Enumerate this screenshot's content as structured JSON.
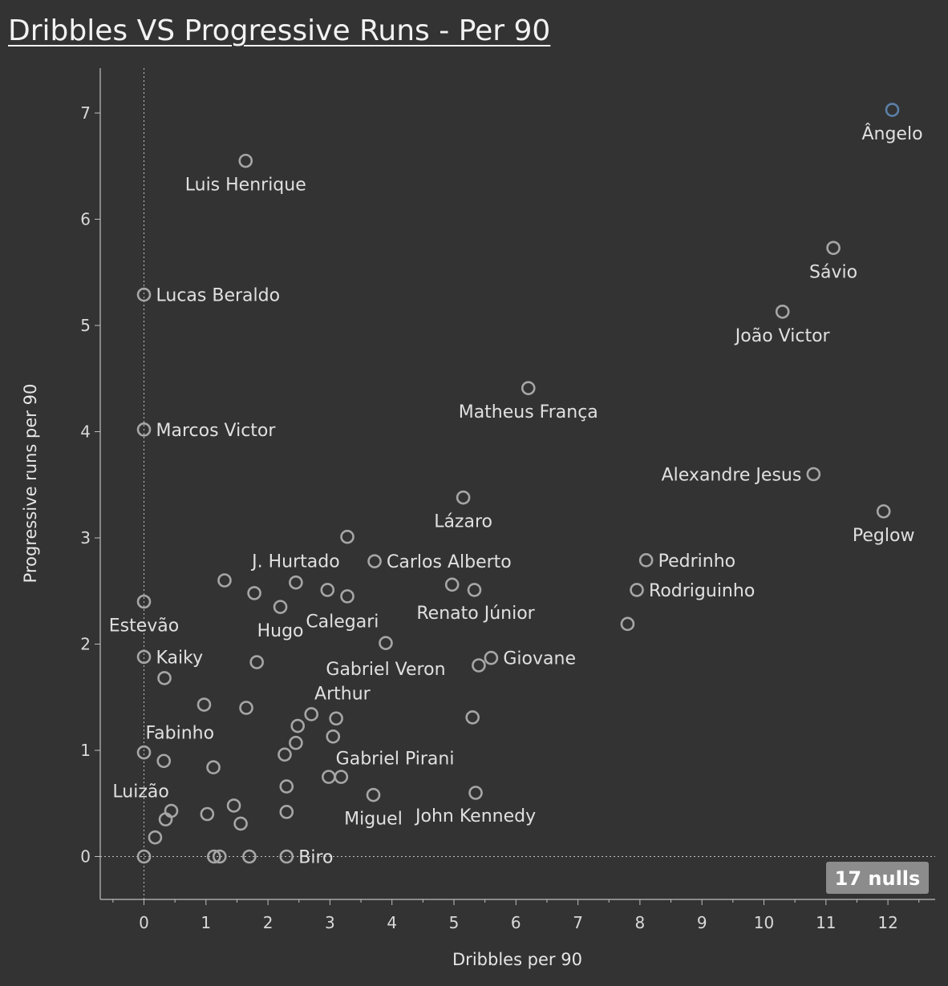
{
  "title": "Dribbles VS Progressive Runs - Per 90",
  "nulls_badge": "17 nulls",
  "colors": {
    "background": "#333333",
    "marker": "#a6a6a6",
    "highlight_marker": "#5b7fa6",
    "axis": "#bfbfbf",
    "reference_line": "#bfbfbf"
  },
  "chart_data": {
    "type": "scatter",
    "title": "Dribbles VS Progressive Runs - Per 90",
    "xlabel": "Dribbles per 90",
    "ylabel": "Progressive runs per 90",
    "xlim": [
      -0.7,
      12.8
    ],
    "ylim": [
      -0.4,
      7.4
    ],
    "x_ticks": [
      0,
      1,
      2,
      3,
      4,
      5,
      6,
      7,
      8,
      9,
      10,
      11,
      12
    ],
    "y_ticks": [
      0,
      1,
      2,
      3,
      4,
      5,
      6,
      7
    ],
    "grid": false,
    "reference_lines": {
      "x": 0,
      "y": 0
    },
    "points": [
      {
        "x": 12.07,
        "y": 7.03,
        "label": "Ângelo",
        "label_pos": "below",
        "highlight": true
      },
      {
        "x": 1.64,
        "y": 6.55,
        "label": "Luis Henrique",
        "label_pos": "below"
      },
      {
        "x": 11.12,
        "y": 5.73,
        "label": "Sávio",
        "label_pos": "below"
      },
      {
        "x": 0.0,
        "y": 5.29,
        "label": "Lucas Beraldo",
        "label_pos": "right"
      },
      {
        "x": 10.3,
        "y": 5.13,
        "label": "João Victor",
        "label_pos": "below"
      },
      {
        "x": 6.2,
        "y": 4.41,
        "label": "Matheus França",
        "label_pos": "below"
      },
      {
        "x": 0.0,
        "y": 4.02,
        "label": "Marcos Victor",
        "label_pos": "right"
      },
      {
        "x": 10.8,
        "y": 3.6,
        "label": "Alexandre Jesus",
        "label_pos": "left"
      },
      {
        "x": 5.15,
        "y": 3.38,
        "label": "Lázaro",
        "label_pos": "below"
      },
      {
        "x": 11.93,
        "y": 3.25,
        "label": "Peglow",
        "label_pos": "below"
      },
      {
        "x": 3.28,
        "y": 3.01
      },
      {
        "x": 3.72,
        "y": 2.78,
        "label": "Carlos Alberto",
        "label_pos": "right"
      },
      {
        "x": 8.1,
        "y": 2.79,
        "label": "Pedrinho",
        "label_pos": "right"
      },
      {
        "x": 1.3,
        "y": 2.6
      },
      {
        "x": 2.45,
        "y": 2.58,
        "label": "J. Hurtado",
        "label_pos": "above"
      },
      {
        "x": 4.97,
        "y": 2.56
      },
      {
        "x": 5.33,
        "y": 2.51
      },
      {
        "x": 7.95,
        "y": 2.51,
        "label": "Rodriguinho",
        "label_pos": "right"
      },
      {
        "x": 2.96,
        "y": 2.51
      },
      {
        "x": 1.78,
        "y": 2.48
      },
      {
        "x": 3.28,
        "y": 2.45
      },
      {
        "x": 0.0,
        "y": 2.4,
        "label": "Estevão",
        "label_pos": "below"
      },
      {
        "x": 2.2,
        "y": 2.35,
        "label": "Hugo",
        "label_pos": "below"
      },
      {
        "x": 7.8,
        "y": 2.19
      },
      {
        "x": 3.9,
        "y": 2.01
      },
      {
        "x": 0.0,
        "y": 1.88,
        "label": "Kaiky",
        "label_pos": "right"
      },
      {
        "x": 5.6,
        "y": 1.87,
        "label": "Giovane",
        "label_pos": "right"
      },
      {
        "x": 1.82,
        "y": 1.83
      },
      {
        "x": 5.4,
        "y": 1.8
      },
      {
        "x": 0.33,
        "y": 1.68
      },
      {
        "x": 0.97,
        "y": 1.43
      },
      {
        "x": 1.65,
        "y": 1.4
      },
      {
        "x": 2.7,
        "y": 1.34
      },
      {
        "x": 3.1,
        "y": 1.3
      },
      {
        "x": 5.3,
        "y": 1.31
      },
      {
        "x": 2.48,
        "y": 1.23
      },
      {
        "x": 3.05,
        "y": 1.13
      },
      {
        "x": 2.45,
        "y": 1.07
      },
      {
        "x": 0.0,
        "y": 0.98
      },
      {
        "x": 2.27,
        "y": 0.96
      },
      {
        "x": 0.32,
        "y": 0.9
      },
      {
        "x": 1.12,
        "y": 0.84
      },
      {
        "x": 2.98,
        "y": 0.75
      },
      {
        "x": 3.18,
        "y": 0.75
      },
      {
        "x": 2.3,
        "y": 0.66
      },
      {
        "x": 5.35,
        "y": 0.6
      },
      {
        "x": 3.7,
        "y": 0.58,
        "label": "Miguel",
        "label_pos": "below"
      },
      {
        "x": 1.45,
        "y": 0.48
      },
      {
        "x": 0.44,
        "y": 0.43
      },
      {
        "x": 1.02,
        "y": 0.4
      },
      {
        "x": 2.3,
        "y": 0.42
      },
      {
        "x": 0.35,
        "y": 0.35
      },
      {
        "x": 1.56,
        "y": 0.31
      },
      {
        "x": 0.18,
        "y": 0.18
      },
      {
        "x": 0.0,
        "y": 0.0
      },
      {
        "x": 1.13,
        "y": 0.0
      },
      {
        "x": 1.22,
        "y": 0.0
      },
      {
        "x": 1.7,
        "y": 0.0
      },
      {
        "x": 2.3,
        "y": 0.0,
        "label": "Biro",
        "label_pos": "right"
      }
    ],
    "annotations": [
      {
        "text": "Calegari",
        "x": 3.2,
        "y": 2.22
      },
      {
        "text": "Renato Júnior",
        "x": 5.35,
        "y": 2.3
      },
      {
        "text": "Gabriel Veron",
        "x": 3.9,
        "y": 1.77
      },
      {
        "text": "Arthur",
        "x": 3.2,
        "y": 1.54
      },
      {
        "text": "Fabinho",
        "x": 0.58,
        "y": 1.17
      },
      {
        "text": "Gabriel Pirani",
        "x": 4.05,
        "y": 0.93
      },
      {
        "text": "Luizão",
        "x": -0.05,
        "y": 0.62
      },
      {
        "text": "John Kennedy",
        "x": 5.35,
        "y": 0.39
      }
    ]
  }
}
